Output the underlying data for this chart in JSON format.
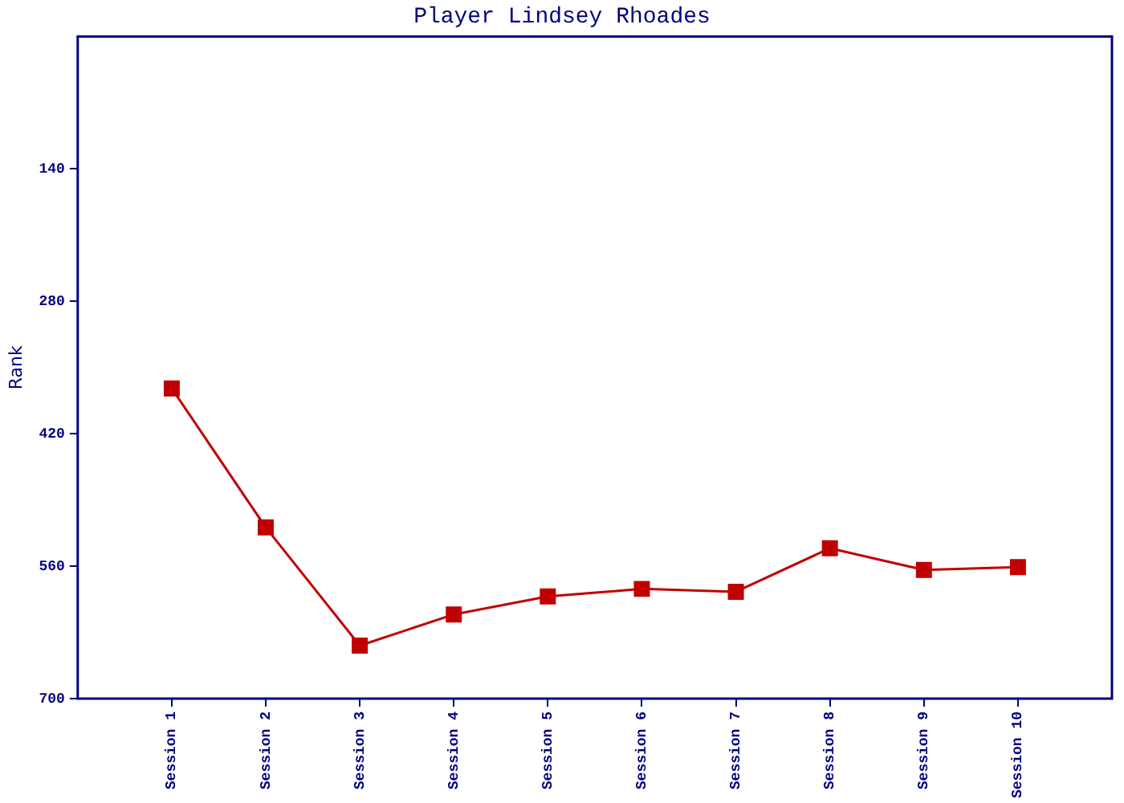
{
  "chart_data": {
    "type": "line",
    "title": "Player Lindsey Rhoades",
    "ylabel": "Rank",
    "categories": [
      "Session 1",
      "Session 2",
      "Session 3",
      "Session 4",
      "Session 5",
      "Session 6",
      "Session 7",
      "Session 8",
      "Session 9",
      "Session 10"
    ],
    "series": [
      {
        "color": "#c00000",
        "values": [
          372,
          519,
          644,
          611,
          592,
          584,
          587,
          541,
          564,
          561
        ]
      }
    ],
    "ylim": [
      700,
      0
    ],
    "yticks": [
      140,
      280,
      420,
      560,
      700
    ],
    "grid": false,
    "legend": false,
    "marker": "square",
    "line_style": "solid"
  }
}
